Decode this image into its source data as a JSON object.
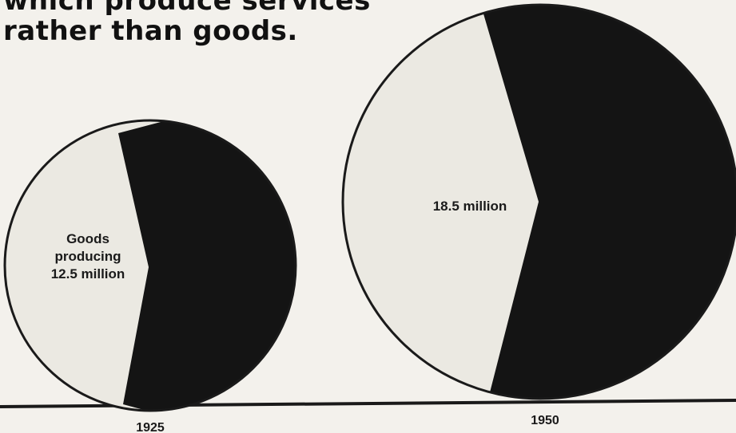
{
  "header": {
    "title_line1": "which produce services",
    "title_line2": "rather than goods."
  },
  "colors": {
    "goods": "#ebe9e2",
    "services": "#141414",
    "outline": "#1a1a1a",
    "baseline": "#1a1a1a",
    "background": "#f3f1ec"
  },
  "chart_data": [
    {
      "type": "pie",
      "year": "1925",
      "slices": [
        {
          "label_lines": [
            "Goods",
            "producing",
            "12.5 million"
          ],
          "value": 12.5,
          "color": "#ebe9e2"
        },
        {
          "label_lines": [],
          "color": "#141414"
        }
      ]
    },
    {
      "type": "pie",
      "year": "1950",
      "slices": [
        {
          "label_lines": [
            "18.5 million"
          ],
          "value": 18.5,
          "color": "#ebe9e2"
        },
        {
          "label_lines": [],
          "color": "#141414"
        }
      ]
    }
  ]
}
